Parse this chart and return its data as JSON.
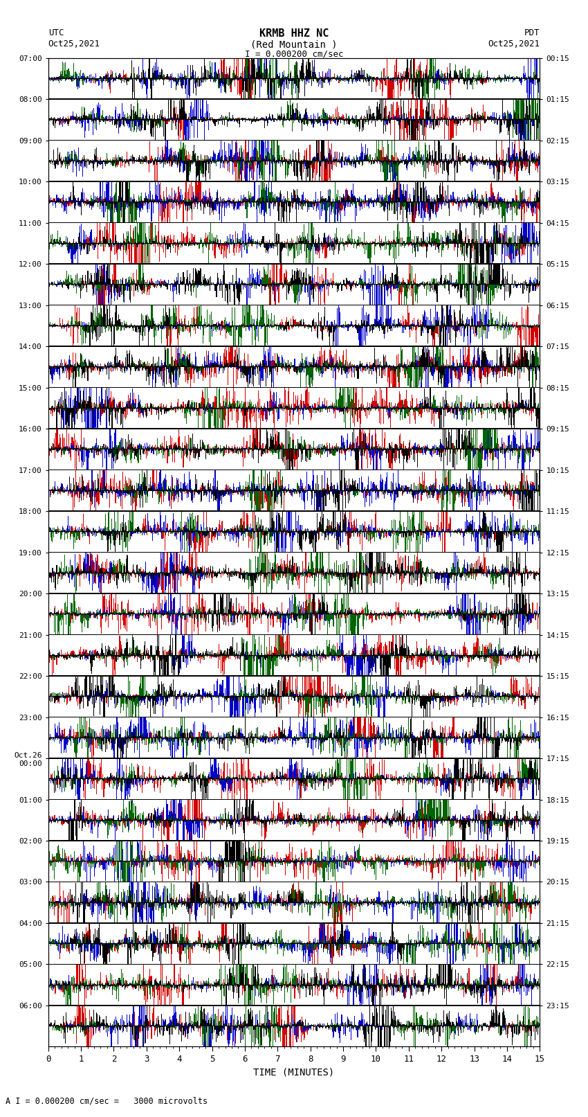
{
  "title_line1": "KRMB HHZ NC",
  "title_line2": "(Red Mountain )",
  "scale_label": "I = 0.000200 cm/sec",
  "left_label": "UTC",
  "left_date": "Oct25,2021",
  "right_label": "PDT",
  "right_date": "Oct25,2021",
  "bottom_label": "TIME (MINUTES)",
  "bottom_note": "A I = 0.000200 cm/sec =   3000 microvolts",
  "left_times": [
    "07:00",
    "08:00",
    "09:00",
    "10:00",
    "11:00",
    "12:00",
    "13:00",
    "14:00",
    "15:00",
    "16:00",
    "17:00",
    "18:00",
    "19:00",
    "20:00",
    "21:00",
    "22:00",
    "23:00",
    "Oct.26\n00:00",
    "01:00",
    "02:00",
    "03:00",
    "04:00",
    "05:00",
    "06:00"
  ],
  "right_times": [
    "00:15",
    "01:15",
    "02:15",
    "03:15",
    "04:15",
    "05:15",
    "06:15",
    "07:15",
    "08:15",
    "09:15",
    "10:15",
    "11:15",
    "12:15",
    "13:15",
    "14:15",
    "15:15",
    "16:15",
    "17:15",
    "18:15",
    "19:15",
    "20:15",
    "21:15",
    "22:15",
    "23:15"
  ],
  "n_rows": 24,
  "n_minutes": 15,
  "bg_color": "white",
  "figsize": [
    8.5,
    16.13
  ],
  "dpi": 100
}
